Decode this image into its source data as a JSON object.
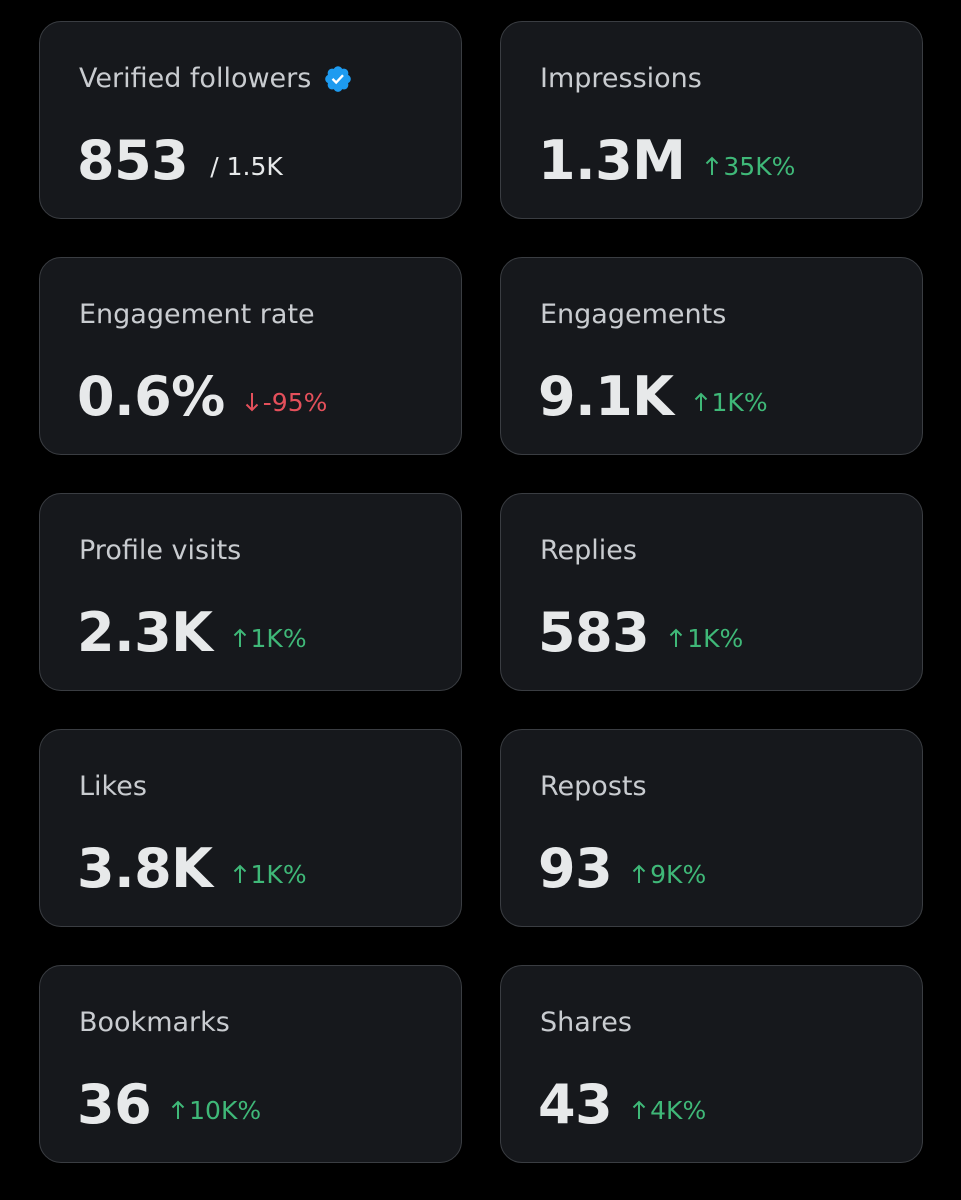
{
  "colors": {
    "background": "#000000",
    "card": "#16181c",
    "card_border": "#3a3d42",
    "label": "#c9ccd0",
    "value": "#e7e9ea",
    "positive": "#3fb878",
    "negative": "#e4505b",
    "verified_badge": "#1d9bf0"
  },
  "metrics": [
    {
      "label": "Verified followers",
      "icon": "verified-badge-icon",
      "value": "853",
      "sub": "/ 1.5K"
    },
    {
      "label": "Impressions",
      "value": "1.3M",
      "delta": "35K%",
      "direction": "up"
    },
    {
      "label": "Engagement rate",
      "value": "0.6%",
      "delta": "-95%",
      "direction": "down"
    },
    {
      "label": "Engagements",
      "value": "9.1K",
      "delta": "1K%",
      "direction": "up"
    },
    {
      "label": "Profile visits",
      "value": "2.3K",
      "delta": "1K%",
      "direction": "up"
    },
    {
      "label": "Replies",
      "value": "583",
      "delta": "1K%",
      "direction": "up"
    },
    {
      "label": "Likes",
      "value": "3.8K",
      "delta": "1K%",
      "direction": "up"
    },
    {
      "label": "Reposts",
      "value": "93",
      "delta": "9K%",
      "direction": "up"
    },
    {
      "label": "Bookmarks",
      "value": "36",
      "delta": "10K%",
      "direction": "up"
    },
    {
      "label": "Shares",
      "value": "43",
      "delta": "4K%",
      "direction": "up"
    }
  ]
}
